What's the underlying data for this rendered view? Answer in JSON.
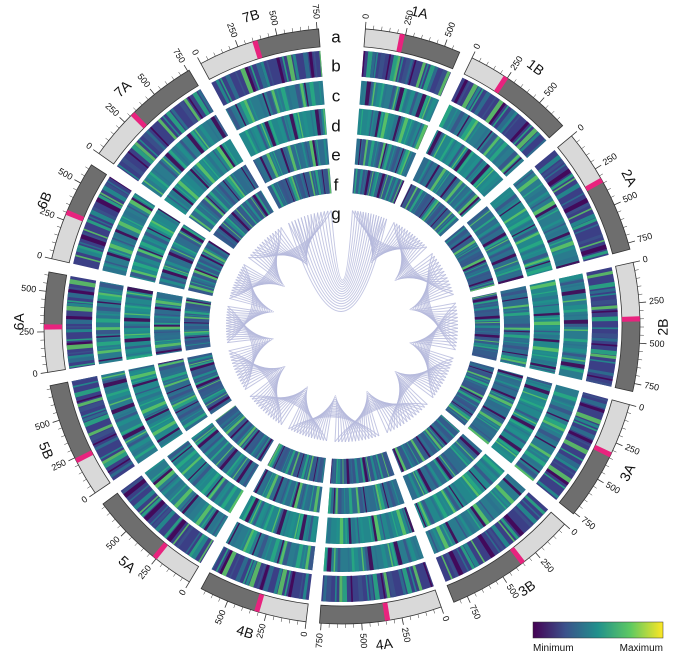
{
  "chromosomes": [
    {
      "name": "1A",
      "length": 600,
      "centromere": 230,
      "ticks": [
        0,
        250,
        500
      ]
    },
    {
      "name": "1B",
      "length": 700,
      "centromere": 240,
      "ticks": [
        0,
        250,
        500
      ]
    },
    {
      "name": "2A",
      "length": 790,
      "centromere": 330,
      "ticks": [
        0,
        250,
        500,
        750
      ]
    },
    {
      "name": "2B",
      "length": 800,
      "centromere": 350,
      "ticks": [
        0,
        250,
        500,
        750
      ]
    },
    {
      "name": "3A",
      "length": 760,
      "centromere": 330,
      "ticks": [
        0,
        250,
        500,
        750
      ]
    },
    {
      "name": "3B",
      "length": 840,
      "centromere": 350,
      "ticks": [
        0,
        250,
        500,
        750
      ]
    },
    {
      "name": "4A",
      "length": 760,
      "centromere": 340,
      "ticks": [
        0,
        250,
        500,
        750
      ]
    },
    {
      "name": "4B",
      "length": 680,
      "centromere": 310,
      "ticks": [
        0,
        250,
        500
      ]
    },
    {
      "name": "5A",
      "length": 720,
      "centromere": 260,
      "ticks": [
        0,
        250,
        500
      ]
    },
    {
      "name": "5B",
      "length": 720,
      "centromere": 230,
      "ticks": [
        0,
        250,
        500
      ]
    },
    {
      "name": "6A",
      "length": 620,
      "centromere": 280,
      "ticks": [
        0,
        250,
        500
      ]
    },
    {
      "name": "6B",
      "length": 630,
      "centromere": 300,
      "ticks": [
        0,
        250,
        500
      ]
    },
    {
      "name": "7A",
      "length": 760,
      "centromere": 320,
      "ticks": [
        0,
        250,
        500,
        750
      ]
    },
    {
      "name": "7B",
      "length": 760,
      "centromere": 360,
      "ticks": [
        0,
        250,
        500,
        750
      ]
    }
  ],
  "tracks": [
    "a",
    "b",
    "c",
    "d",
    "e",
    "f",
    "g"
  ],
  "legend": {
    "min": "Minimum",
    "max": "Maximum"
  }
}
